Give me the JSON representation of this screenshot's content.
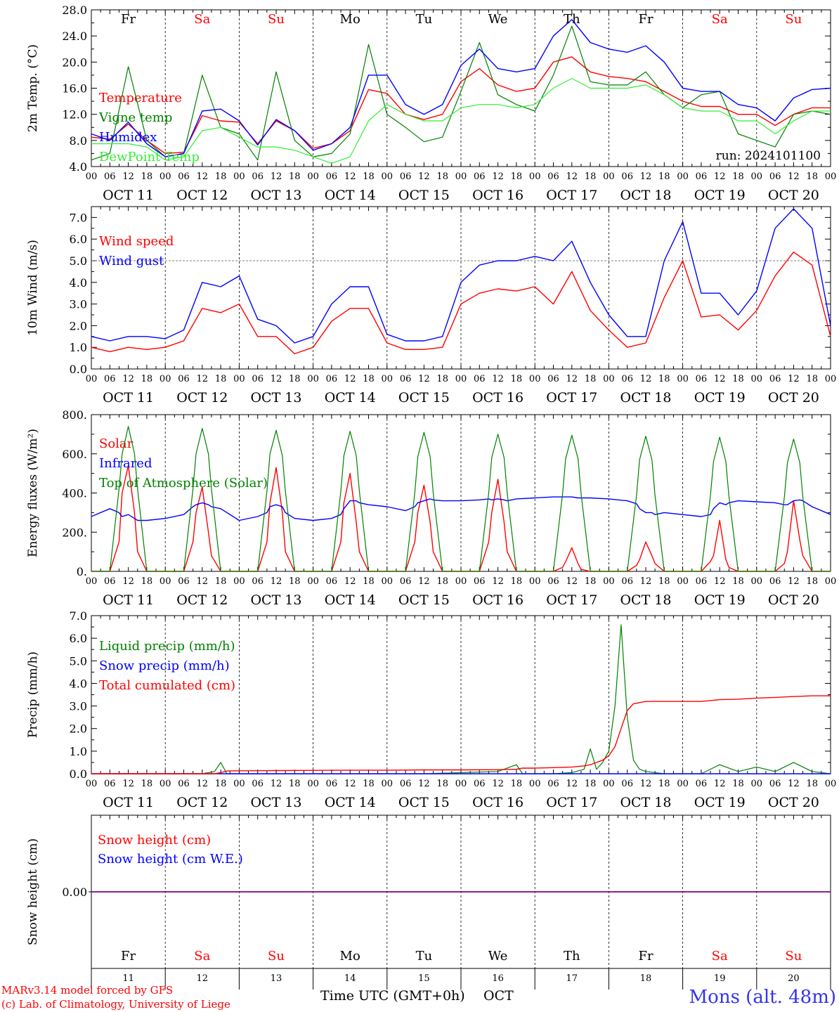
{
  "footer": {
    "model": "MARv3.14 model forced by GFS",
    "copyright": "(c) Lab. of Climatology, University of Liege",
    "xlabel": "Time UTC (GMT+0h)",
    "month": "OCT",
    "station": "Mons (alt. 48m)"
  },
  "colors": {
    "red": "#ff0000",
    "green": "#008000",
    "blue": "#0000ff",
    "light_green": "#33ee33",
    "purple": "#800080",
    "weekend": "#ff0000",
    "weekday": "#000000"
  },
  "days": [
    {
      "abbr": "Fr",
      "num": "11",
      "weekend": false
    },
    {
      "abbr": "Sa",
      "num": "12",
      "weekend": true
    },
    {
      "abbr": "Su",
      "num": "13",
      "weekend": true
    },
    {
      "abbr": "Mo",
      "num": "14",
      "weekend": false
    },
    {
      "abbr": "Tu",
      "num": "15",
      "weekend": false
    },
    {
      "abbr": "We",
      "num": "16",
      "weekend": false
    },
    {
      "abbr": "Th",
      "num": "17",
      "weekend": false
    },
    {
      "abbr": "Fr",
      "num": "18",
      "weekend": false
    },
    {
      "abbr": "Sa",
      "num": "19",
      "weekend": true
    },
    {
      "abbr": "Su",
      "num": "20",
      "weekend": true
    }
  ],
  "date_labels": [
    "OCT 11",
    "OCT 12",
    "OCT 13",
    "OCT 14",
    "OCT 15",
    "OCT 16",
    "OCT 17",
    "OCT 18",
    "OCT 19",
    "OCT 20"
  ],
  "hour_labels": [
    "00",
    "06",
    "12",
    "18"
  ],
  "chart_data": [
    {
      "type": "line",
      "id": "temp",
      "ylabel": "2m Temp. (°C)",
      "ylim": [
        4,
        28
      ],
      "yticks": [
        "4.0",
        "8.0",
        "12.0",
        "16.0",
        "20.0",
        "24.0",
        "28.0"
      ],
      "annotation": "run: 2024101100",
      "x_hours": [
        0,
        6,
        12,
        18,
        24,
        30,
        36,
        42,
        48,
        54,
        60,
        66,
        72,
        78,
        84,
        90,
        96,
        102,
        108,
        114,
        120,
        126,
        132,
        138,
        144,
        150,
        156,
        162,
        168,
        174,
        180,
        186,
        192,
        198,
        204,
        210,
        216,
        222,
        228,
        234,
        240
      ],
      "series": [
        {
          "name": "Temperature",
          "color": "red",
          "values": [
            8.5,
            8.2,
            10.5,
            8.0,
            6.0,
            6.2,
            11.8,
            11.0,
            10.8,
            7.5,
            11.0,
            9.5,
            6.8,
            7.5,
            9.5,
            15.8,
            15.2,
            12.0,
            11.2,
            12.0,
            17.0,
            19.0,
            16.5,
            15.5,
            16.0,
            20.0,
            20.8,
            18.5,
            17.8,
            17.5,
            17.0,
            15.5,
            14.0,
            13.2,
            13.2,
            12.0,
            12.0,
            10.3,
            12.0,
            13.0,
            13.0
          ]
        },
        {
          "name": "Vigne temp",
          "color": "green",
          "values": [
            5.0,
            6.0,
            19.3,
            8.0,
            5.5,
            6.0,
            18.0,
            10.0,
            9.0,
            5.0,
            18.5,
            8.0,
            5.5,
            6.0,
            9.0,
            22.7,
            12.0,
            10.0,
            7.8,
            8.5,
            15.5,
            23.0,
            15.0,
            13.5,
            12.5,
            18.0,
            25.5,
            17.0,
            16.5,
            16.5,
            18.5,
            15.0,
            13.0,
            15.0,
            15.5,
            9.0,
            8.0,
            7.0,
            12.0,
            12.5,
            12.0
          ]
        },
        {
          "name": "Humidex",
          "color": "blue",
          "values": [
            9.0,
            8.0,
            10.8,
            7.5,
            5.5,
            6.0,
            12.5,
            12.8,
            11.0,
            7.3,
            11.2,
            9.5,
            6.5,
            7.5,
            10.0,
            18.0,
            18.0,
            13.5,
            12.0,
            13.5,
            19.5,
            22.0,
            19.0,
            18.5,
            19.0,
            24.0,
            26.5,
            23.0,
            22.0,
            21.5,
            22.5,
            20.0,
            16.0,
            15.5,
            15.5,
            13.5,
            13.0,
            11.0,
            14.5,
            15.8,
            16.0
          ]
        },
        {
          "name": "DewPoint Temp",
          "color": "light_green",
          "values": [
            7.5,
            7.5,
            7.5,
            7.0,
            5.0,
            5.5,
            9.5,
            10.0,
            8.5,
            7.0,
            7.0,
            6.5,
            5.5,
            4.5,
            5.5,
            11.0,
            13.5,
            12.0,
            11.0,
            11.0,
            13.0,
            13.5,
            13.5,
            13.0,
            13.5,
            16.0,
            17.5,
            16.0,
            16.0,
            16.0,
            16.5,
            15.0,
            13.0,
            12.5,
            12.5,
            11.0,
            11.0,
            9.0,
            11.0,
            12.5,
            12.5
          ]
        }
      ]
    },
    {
      "type": "line",
      "id": "wind",
      "ylabel": "10m Wind (m/s)",
      "ylim": [
        0,
        7.5
      ],
      "yticks": [
        "0.0",
        "1.0",
        "2.0",
        "3.0",
        "4.0",
        "5.0",
        "6.0",
        "7.0"
      ],
      "reference_line": 5.0,
      "x_hours": [
        0,
        6,
        12,
        18,
        24,
        30,
        36,
        42,
        48,
        54,
        60,
        66,
        72,
        78,
        84,
        90,
        96,
        102,
        108,
        114,
        120,
        126,
        132,
        138,
        144,
        150,
        156,
        162,
        168,
        174,
        180,
        186,
        192,
        198,
        204,
        210,
        216,
        222,
        228,
        234,
        240
      ],
      "series": [
        {
          "name": "Wind speed",
          "color": "red",
          "values": [
            1.0,
            0.8,
            1.0,
            0.9,
            1.0,
            1.3,
            2.8,
            2.6,
            3.0,
            1.5,
            1.5,
            0.7,
            1.0,
            2.2,
            2.8,
            2.8,
            1.2,
            0.9,
            0.9,
            1.0,
            3.0,
            3.5,
            3.7,
            3.6,
            3.8,
            3.0,
            4.5,
            2.7,
            1.8,
            1.0,
            1.2,
            3.3,
            5.0,
            2.4,
            2.5,
            1.8,
            2.7,
            4.3,
            5.4,
            4.8,
            1.5
          ]
        },
        {
          "name": "Wind gust",
          "color": "blue",
          "values": [
            1.5,
            1.3,
            1.5,
            1.5,
            1.4,
            1.8,
            4.0,
            3.8,
            4.3,
            2.3,
            2.0,
            1.2,
            1.5,
            3.0,
            3.8,
            3.8,
            1.6,
            1.3,
            1.3,
            1.5,
            4.0,
            4.8,
            5.0,
            5.0,
            5.2,
            5.0,
            5.9,
            4.0,
            2.5,
            1.5,
            1.5,
            5.0,
            6.8,
            3.5,
            3.5,
            2.5,
            3.6,
            6.5,
            7.4,
            6.5,
            2.0
          ]
        }
      ]
    },
    {
      "type": "line",
      "id": "flux",
      "ylabel": "Energy fluxes (W/m²)",
      "ylim": [
        0,
        800
      ],
      "yticks": [
        "0.",
        "200.",
        "400.",
        "600.",
        "800."
      ],
      "x_hours": [
        0,
        6,
        9,
        10,
        12,
        14,
        15,
        18,
        24,
        30,
        33,
        34,
        36,
        38,
        39,
        42,
        48,
        54,
        57,
        58,
        60,
        62,
        63,
        66,
        72,
        78,
        81,
        82,
        84,
        86,
        87,
        90,
        96,
        102,
        105,
        106,
        108,
        110,
        111,
        114,
        120,
        126,
        129,
        130,
        132,
        134,
        135,
        138,
        144,
        150,
        153,
        154,
        156,
        158,
        159,
        162,
        168,
        174,
        177,
        178,
        180,
        182,
        183,
        186,
        192,
        198,
        201,
        202,
        204,
        206,
        207,
        210,
        216,
        222,
        225,
        226,
        228,
        230,
        231,
        234,
        240
      ],
      "series": [
        {
          "name": "Solar",
          "color": "red",
          "values": [
            0,
            0,
            150,
            400,
            540,
            300,
            100,
            0,
            0,
            0,
            150,
            300,
            430,
            200,
            80,
            0,
            0,
            0,
            150,
            350,
            530,
            300,
            100,
            0,
            0,
            0,
            150,
            350,
            500,
            250,
            100,
            0,
            0,
            0,
            150,
            300,
            440,
            250,
            100,
            0,
            0,
            0,
            150,
            300,
            470,
            250,
            100,
            0,
            0,
            0,
            20,
            50,
            120,
            40,
            10,
            0,
            0,
            0,
            30,
            60,
            150,
            80,
            40,
            0,
            0,
            0,
            50,
            80,
            260,
            60,
            20,
            0,
            0,
            0,
            40,
            100,
            360,
            160,
            80,
            0,
            0
          ]
        },
        {
          "name": "Infrared",
          "color": "blue",
          "values": [
            280,
            320,
            300,
            280,
            290,
            270,
            260,
            260,
            270,
            290,
            330,
            340,
            350,
            340,
            330,
            320,
            260,
            280,
            300,
            330,
            340,
            330,
            300,
            270,
            260,
            270,
            290,
            320,
            360,
            360,
            350,
            340,
            330,
            310,
            330,
            350,
            360,
            370,
            365,
            360,
            360,
            365,
            370,
            365,
            370,
            365,
            360,
            370,
            375,
            380,
            380,
            380,
            380,
            375,
            375,
            375,
            370,
            360,
            345,
            320,
            300,
            300,
            290,
            300,
            290,
            280,
            290,
            320,
            350,
            340,
            350,
            360,
            355,
            350,
            340,
            340,
            360,
            365,
            360,
            330,
            290
          ]
        },
        {
          "name": "Top of Atmosphere (Solar)",
          "color": "green",
          "values": [
            0,
            0,
            420,
            600,
            740,
            600,
            420,
            0,
            0,
            0,
            420,
            600,
            730,
            600,
            420,
            0,
            0,
            0,
            410,
            600,
            720,
            590,
            410,
            0,
            0,
            0,
            410,
            590,
            715,
            590,
            410,
            0,
            0,
            0,
            400,
            585,
            710,
            585,
            400,
            0,
            0,
            0,
            400,
            580,
            700,
            580,
            400,
            0,
            0,
            0,
            395,
            575,
            695,
            575,
            395,
            0,
            0,
            0,
            390,
            570,
            690,
            570,
            390,
            0,
            0,
            0,
            385,
            560,
            685,
            560,
            385,
            0,
            0,
            0,
            380,
            555,
            675,
            555,
            380,
            0,
            0
          ]
        }
      ]
    },
    {
      "type": "line",
      "id": "precip",
      "ylabel": "Precip (mm/h)",
      "ylim": [
        0,
        7
      ],
      "yticks": [
        "0.0",
        "1.0",
        "2.0",
        "3.0",
        "4.0",
        "5.0",
        "6.0",
        "7.0"
      ],
      "x_hours": [
        0,
        6,
        12,
        18,
        24,
        30,
        36,
        40,
        42,
        44,
        48,
        60,
        72,
        84,
        96,
        108,
        120,
        132,
        138,
        140,
        144,
        150,
        156,
        160,
        162,
        164,
        166,
        168,
        170,
        172,
        174,
        176,
        178,
        180,
        186,
        192,
        198,
        204,
        210,
        216,
        222,
        228,
        234,
        240
      ],
      "series": [
        {
          "name": "Liquid precip (mm/h)",
          "color": "green",
          "values": [
            0,
            0,
            0,
            0,
            0,
            0,
            0,
            0.1,
            0.5,
            0,
            0,
            0,
            0,
            0,
            0,
            0,
            0.05,
            0.1,
            0.4,
            0,
            0,
            0,
            0.05,
            0.2,
            1.1,
            0.2,
            0.5,
            1.0,
            3.0,
            6.6,
            2.5,
            0.6,
            0.2,
            0.1,
            0,
            0,
            0,
            0.4,
            0.1,
            0.3,
            0.1,
            0.5,
            0.1,
            0
          ]
        },
        {
          "name": "Snow precip (mm/h)",
          "color": "blue",
          "values": [
            0,
            0,
            0,
            0,
            0,
            0,
            0,
            0,
            0,
            0,
            0,
            0,
            0,
            0,
            0,
            0,
            0,
            0,
            0,
            0,
            0,
            0,
            0,
            0,
            0,
            0,
            0,
            0,
            0,
            0,
            0,
            0,
            0,
            0,
            0,
            0,
            0,
            0,
            0,
            0,
            0,
            0,
            0,
            0
          ]
        },
        {
          "name": "Total cumulated (cm)",
          "color": "red",
          "values": [
            0,
            0,
            0,
            0,
            0,
            0,
            0,
            0,
            0.05,
            0.12,
            0.13,
            0.14,
            0.15,
            0.16,
            0.16,
            0.17,
            0.17,
            0.18,
            0.2,
            0.25,
            0.25,
            0.27,
            0.3,
            0.35,
            0.4,
            0.5,
            0.6,
            0.8,
            1.2,
            2.0,
            2.8,
            3.1,
            3.15,
            3.2,
            3.2,
            3.2,
            3.2,
            3.28,
            3.3,
            3.35,
            3.38,
            3.42,
            3.45,
            3.45
          ]
        }
      ]
    },
    {
      "type": "line",
      "id": "snow",
      "ylabel": "Snow height (cm)",
      "yticks": [
        "0.00"
      ],
      "ylim": [
        -1,
        1
      ],
      "x_hours": [
        0,
        240
      ],
      "series": [
        {
          "name": "Snow height (cm)",
          "color": "red",
          "values": [
            0,
            0
          ]
        },
        {
          "name": "Snow height (cm W.E.)",
          "color": "blue",
          "values": [
            0,
            0
          ]
        }
      ]
    }
  ]
}
